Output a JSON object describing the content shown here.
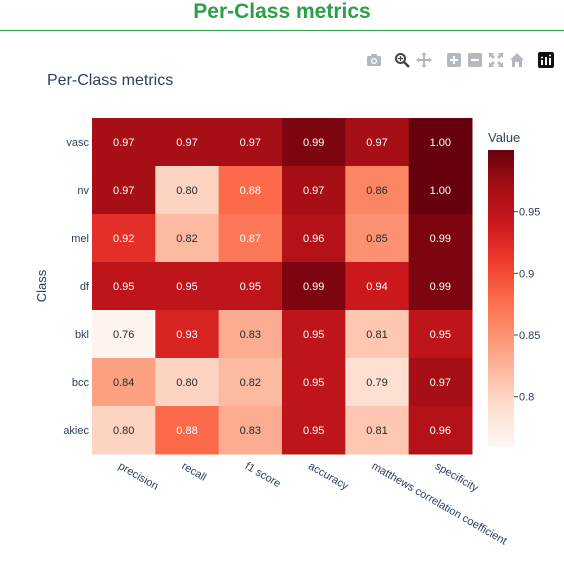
{
  "page": {
    "header_title": "Per-Class metrics"
  },
  "modebar": {
    "icons": [
      "camera-icon",
      "zoom-icon",
      "pan-icon",
      "zoom-in-icon",
      "zoom-out-icon",
      "autoscale-icon",
      "reset-axes-icon",
      "plotly-logo-icon"
    ]
  },
  "chart_data": {
    "type": "heatmap",
    "title": "Per-Class metrics",
    "ylabel": "Class",
    "xlabel": "",
    "x": [
      "precision",
      "recall",
      "f1 score",
      "accuracy",
      "matthews correlation coefficient",
      "specificity"
    ],
    "y": [
      "vasc",
      "nv",
      "mel",
      "df",
      "bkl",
      "bcc",
      "akiec"
    ],
    "z": [
      [
        0.97,
        0.97,
        0.97,
        0.99,
        0.97,
        1.0
      ],
      [
        0.97,
        0.8,
        0.88,
        0.97,
        0.86,
        1.0
      ],
      [
        0.92,
        0.82,
        0.87,
        0.96,
        0.85,
        0.99
      ],
      [
        0.95,
        0.95,
        0.95,
        0.99,
        0.94,
        0.99
      ],
      [
        0.76,
        0.93,
        0.83,
        0.95,
        0.81,
        0.95
      ],
      [
        0.84,
        0.8,
        0.82,
        0.95,
        0.79,
        0.97
      ],
      [
        0.8,
        0.88,
        0.83,
        0.95,
        0.81,
        0.96
      ]
    ],
    "z_labels": [
      [
        "0.97",
        "0.97",
        "0.97",
        "0.99",
        "0.97",
        "1.00"
      ],
      [
        "0.97",
        "0.80",
        "0.88",
        "0.97",
        "0.86",
        "1.00"
      ],
      [
        "0.92",
        "0.82",
        "0.87",
        "0.96",
        "0.85",
        "0.99"
      ],
      [
        "0.95",
        "0.95",
        "0.95",
        "0.99",
        "0.94",
        "0.99"
      ],
      [
        "0.76",
        "0.93",
        "0.83",
        "0.95",
        "0.81",
        "0.95"
      ],
      [
        "0.84",
        "0.80",
        "0.82",
        "0.95",
        "0.79",
        "0.97"
      ],
      [
        "0.80",
        "0.88",
        "0.83",
        "0.95",
        "0.81",
        "0.96"
      ]
    ],
    "colorscale": "Reds",
    "colorbar": {
      "title": "Value",
      "range": [
        0.76,
        1.0
      ],
      "tickvals": [
        0.8,
        0.85,
        0.9,
        0.95
      ],
      "ticktext": [
        "0.8",
        "0.85",
        "0.9",
        "0.95"
      ]
    }
  }
}
